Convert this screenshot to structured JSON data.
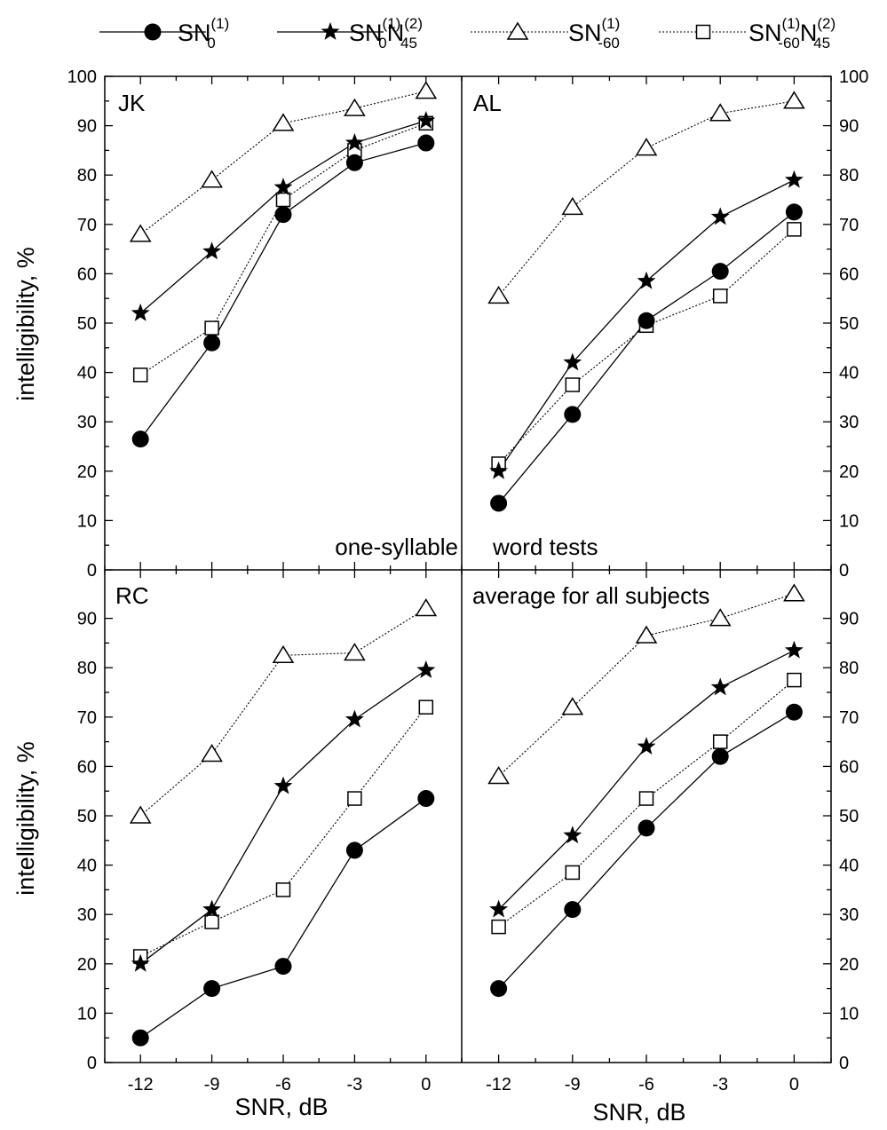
{
  "legend": [
    {
      "series": "s1",
      "base": "SN",
      "sup1": "(1)",
      "sub1": "0",
      "n": "",
      "sup2": "",
      "sub2": ""
    },
    {
      "series": "s2",
      "base": "SN",
      "sup1": "(1)",
      "sub1": "0",
      "n": "N",
      "sup2": "(2)",
      "sub2": "45"
    },
    {
      "series": "s3",
      "base": "SN",
      "sup1": "(1)",
      "sub1": "-60",
      "n": "",
      "sup2": "",
      "sub2": ""
    },
    {
      "series": "s4",
      "base": "SN",
      "sup1": "(1)",
      "sub1": "-60",
      "n": "N",
      "sup2": "(2)",
      "sub2": "45"
    }
  ],
  "annotation": {
    "left": "one-syllable",
    "right": "word tests"
  },
  "ylabel": "intelligibility, %",
  "xlabel": "SNR, dB",
  "chart_data": {
    "type": "line",
    "x": [
      -12,
      -9,
      -6,
      -3,
      0
    ],
    "xticks": [
      -12,
      -9,
      -6,
      -3,
      0
    ],
    "xlim": [
      -13.5,
      1.5
    ],
    "ylim": [
      0,
      100
    ],
    "yticks": [
      0,
      10,
      20,
      30,
      40,
      50,
      60,
      70,
      80,
      90,
      100
    ],
    "grid": false,
    "legend_position": "top",
    "series_styles": {
      "s1": {
        "marker": "circle-filled",
        "line": "solid"
      },
      "s2": {
        "marker": "star-filled",
        "line": "solid"
      },
      "s3": {
        "marker": "triangle-open",
        "line": "dotted"
      },
      "s4": {
        "marker": "square-open",
        "line": "dotted"
      }
    },
    "panels": [
      {
        "id": "jk",
        "label": "JK",
        "series": {
          "s1": [
            26.5,
            46,
            72,
            82.5,
            86.5
          ],
          "s2": [
            52,
            64.5,
            77.5,
            86.5,
            91
          ],
          "s3": [
            68,
            79,
            90.5,
            93.5,
            97
          ],
          "s4": [
            39.5,
            49,
            75,
            85,
            90.5
          ]
        }
      },
      {
        "id": "al",
        "label": "AL",
        "series": {
          "s1": [
            13.5,
            31.5,
            50.5,
            60.5,
            72.5
          ],
          "s2": [
            20,
            42,
            58.5,
            71.5,
            79
          ],
          "s3": [
            55.5,
            73.5,
            85.5,
            92.5,
            95
          ],
          "s4": [
            21.5,
            37.5,
            49.5,
            55.5,
            69
          ]
        }
      },
      {
        "id": "rc",
        "label": "RC",
        "series": {
          "s1": [
            5,
            15,
            19.5,
            43,
            53.5
          ],
          "s2": [
            20,
            31,
            56,
            69.5,
            79.5
          ],
          "s3": [
            50,
            62.5,
            82.5,
            83,
            92
          ],
          "s4": [
            21.5,
            28.5,
            35,
            53.5,
            72
          ]
        }
      },
      {
        "id": "avg",
        "label": "average for all subjects",
        "series": {
          "s1": [
            15,
            31,
            47.5,
            62,
            71
          ],
          "s2": [
            31,
            46,
            64,
            76,
            83.5
          ],
          "s3": [
            58,
            72,
            86.5,
            90,
            95
          ],
          "s4": [
            27.5,
            38.5,
            53.5,
            65,
            77.5
          ]
        }
      }
    ]
  }
}
